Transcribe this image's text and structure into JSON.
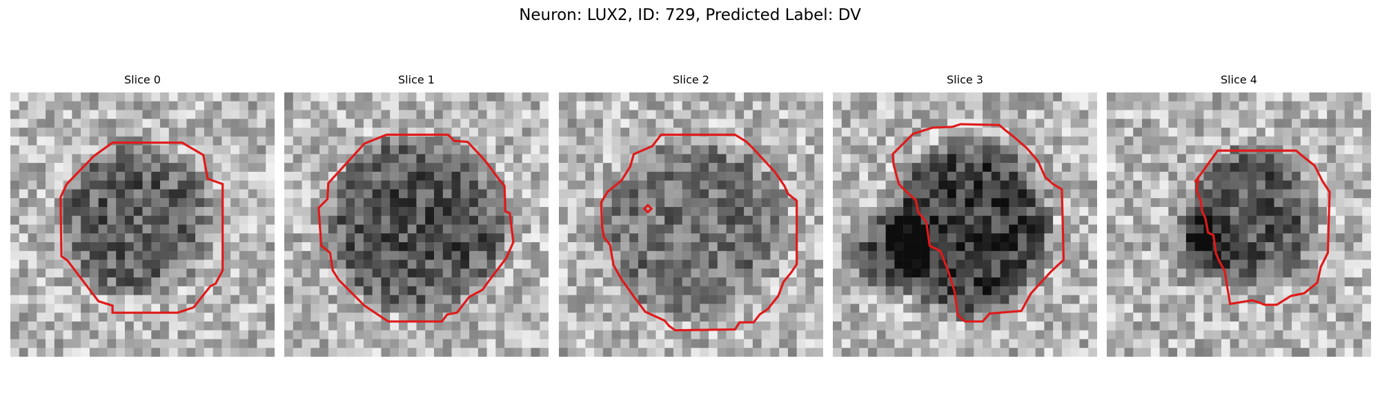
{
  "title": "Neuron: LUX2, ID: 729, Predicted Label: DV",
  "panels": [
    {
      "title": "Slice 0",
      "blob": [
        0.47,
        0.48,
        0.31,
        0.31
      ],
      "darkness": 0.35,
      "blob2": null
    },
    {
      "title": "Slice 1",
      "blob": [
        0.5,
        0.5,
        0.37,
        0.36
      ],
      "darkness": 0.4,
      "blob2": null
    },
    {
      "title": "Slice 2",
      "blob": [
        0.51,
        0.51,
        0.38,
        0.37
      ],
      "darkness": 0.28,
      "blob2": null
    },
    {
      "title": "Slice 3",
      "blob": [
        0.52,
        0.52,
        0.33,
        0.36
      ],
      "darkness": 0.5,
      "blob2": [
        0.22,
        0.6,
        0.18,
        0.2
      ]
    },
    {
      "title": "Slice 4",
      "blob": [
        0.55,
        0.48,
        0.26,
        0.3
      ],
      "darkness": 0.38,
      "blob2": [
        0.35,
        0.57,
        0.14,
        0.18
      ]
    }
  ],
  "contour_color": "#e01a1a"
}
